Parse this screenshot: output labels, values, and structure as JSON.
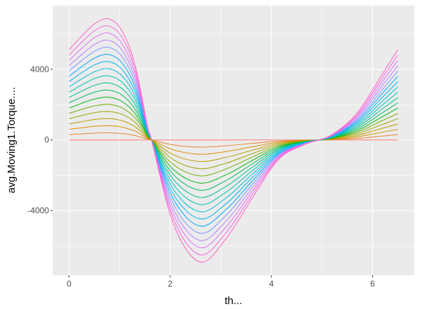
{
  "chart_data": {
    "type": "line",
    "xlabel": "th...",
    "ylabel": "avg.Moving1.Torque....",
    "xlim": [
      -0.325,
      6.825
    ],
    "ylim": [
      -7660,
      7600
    ],
    "x_ticks": [
      0,
      2,
      4,
      6
    ],
    "y_ticks": [
      -4000,
      0,
      4000
    ],
    "x_tick_labels": [
      "0",
      "2",
      "4",
      "6"
    ],
    "y_tick_labels": [
      "-4000",
      "0",
      "4000"
    ],
    "grid": true,
    "legend": "none",
    "panel_background": "#EBEBEB",
    "x": [
      0,
      0.26,
      0.52,
      0.78,
      1.04,
      1.3,
      1.55,
      1.63,
      2.07,
      2.59,
      3.1,
      3.62,
      4.14,
      4.66,
      5.17,
      5.69,
      6.21,
      6.5
    ],
    "series": [
      {
        "color": "#F8766D",
        "values": [
          0,
          0,
          0,
          0,
          0,
          0,
          0,
          0,
          0,
          0,
          0,
          0,
          0,
          0,
          0,
          0,
          0,
          0
        ]
      },
      {
        "color": "#E9842C",
        "values": [
          300,
          347,
          388,
          403,
          365,
          253,
          47,
          0,
          -282,
          -406,
          -329,
          -194,
          -65,
          -15,
          15,
          88,
          224,
          300
        ]
      },
      {
        "color": "#D69100",
        "values": [
          600,
          694,
          776,
          806,
          730,
          506,
          94,
          0,
          -564,
          -812,
          -658,
          -388,
          -130,
          -30,
          30,
          176,
          448,
          600
        ]
      },
      {
        "color": "#BC9D00",
        "values": [
          900,
          1041,
          1164,
          1209,
          1095,
          759,
          141,
          0,
          -846,
          -1218,
          -987,
          -582,
          -195,
          -45,
          45,
          264,
          672,
          900
        ]
      },
      {
        "color": "#9CA700",
        "values": [
          1200,
          1388,
          1552,
          1612,
          1460,
          1012,
          188,
          0,
          -1128,
          -1624,
          -1316,
          -776,
          -260,
          -60,
          60,
          352,
          896,
          1200
        ]
      },
      {
        "color": "#6FB000",
        "values": [
          1500,
          1735,
          1940,
          2015,
          1825,
          1265,
          235,
          0,
          -1410,
          -2030,
          -1645,
          -970,
          -325,
          -75,
          75,
          440,
          1120,
          1500
        ]
      },
      {
        "color": "#00B813",
        "values": [
          1800,
          2082,
          2328,
          2418,
          2190,
          1518,
          282,
          0,
          -1692,
          -2436,
          -1974,
          -1164,
          -390,
          -90,
          90,
          528,
          1344,
          1800
        ]
      },
      {
        "color": "#00BD61",
        "values": [
          2100,
          2429,
          2716,
          2821,
          2555,
          1771,
          329,
          0,
          -1974,
          -2842,
          -2303,
          -1358,
          -455,
          -105,
          105,
          616,
          1568,
          2100
        ]
      },
      {
        "color": "#00C08E",
        "values": [
          2400,
          2776,
          3104,
          3224,
          2920,
          2024,
          376,
          0,
          -2256,
          -3248,
          -2632,
          -1552,
          -520,
          -120,
          120,
          704,
          1792,
          2400
        ]
      },
      {
        "color": "#00C0B4",
        "values": [
          2700,
          3123,
          3492,
          3627,
          3285,
          2277,
          423,
          0,
          -2538,
          -3654,
          -2961,
          -1746,
          -585,
          -135,
          135,
          792,
          2016,
          2700
        ]
      },
      {
        "color": "#00BDD4",
        "values": [
          3000,
          3470,
          3880,
          4030,
          3650,
          2530,
          470,
          0,
          -2820,
          -4060,
          -3290,
          -1940,
          -650,
          -150,
          150,
          880,
          2240,
          3000
        ]
      },
      {
        "color": "#00B5EE",
        "values": [
          3300,
          3817,
          4268,
          4433,
          4015,
          2783,
          517,
          0,
          -3102,
          -4466,
          -3619,
          -2134,
          -715,
          -165,
          165,
          968,
          2464,
          3300
        ]
      },
      {
        "color": "#00A7FF",
        "values": [
          3600,
          4164,
          4656,
          4836,
          4380,
          3036,
          564,
          0,
          -3384,
          -4872,
          -3948,
          -2328,
          -780,
          -180,
          180,
          1056,
          2688,
          3600
        ]
      },
      {
        "color": "#7F96FF",
        "values": [
          3900,
          4511,
          5044,
          5239,
          4745,
          3289,
          611,
          0,
          -3666,
          -5278,
          -4277,
          -2522,
          -845,
          -195,
          195,
          1144,
          2912,
          3900
        ]
      },
      {
        "color": "#BC81FF",
        "values": [
          4200,
          4858,
          5432,
          5642,
          5110,
          3542,
          658,
          0,
          -3948,
          -5684,
          -4606,
          -2716,
          -910,
          -210,
          210,
          1232,
          3136,
          4200
        ]
      },
      {
        "color": "#E26EF7",
        "values": [
          4500,
          5205,
          5820,
          6045,
          5475,
          3795,
          705,
          0,
          -4230,
          -6090,
          -4935,
          -2910,
          -975,
          -225,
          225,
          1320,
          3360,
          4500
        ]
      },
      {
        "color": "#F863DF",
        "values": [
          4800,
          5552,
          6208,
          6448,
          5840,
          4048,
          752,
          0,
          -4512,
          -6496,
          -5264,
          -3104,
          -1040,
          -240,
          240,
          1408,
          3584,
          4800
        ]
      },
      {
        "color": "#FF62BF",
        "values": [
          5100,
          5899,
          6596,
          6851,
          6205,
          4301,
          799,
          0,
          -4794,
          -6902,
          -5593,
          -3298,
          -1105,
          -255,
          255,
          1496,
          3808,
          5100
        ]
      }
    ]
  }
}
